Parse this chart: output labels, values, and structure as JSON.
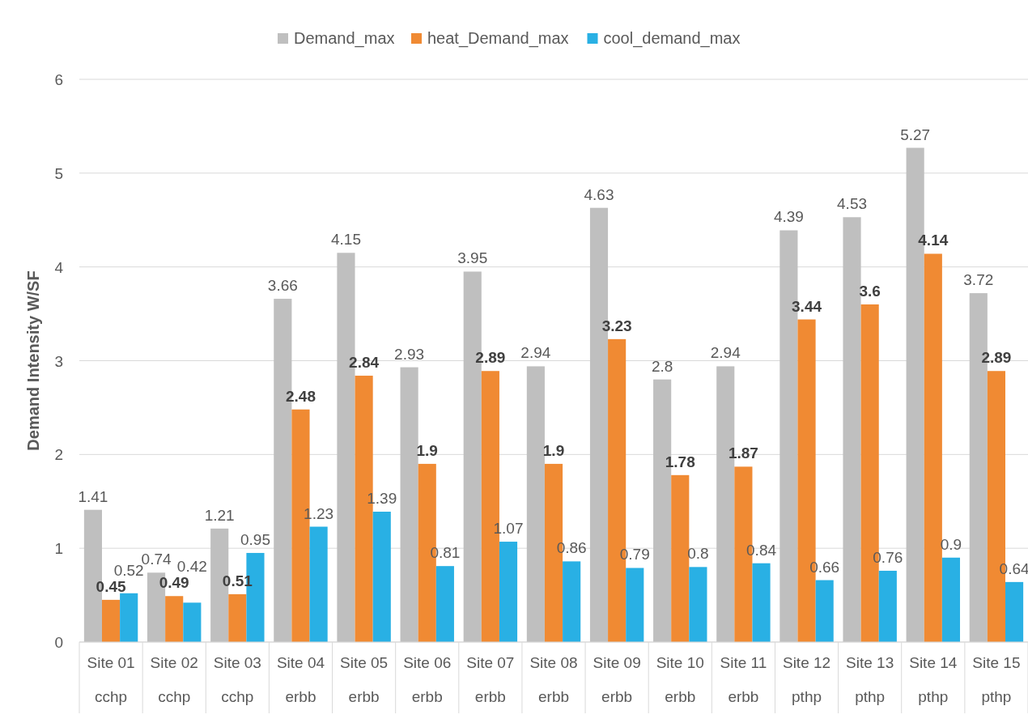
{
  "chart_data": {
    "type": "bar",
    "ylabel": "Demand Intensity W/SF",
    "categories": [
      "Site 01\ncchp",
      "Site 02\ncchp",
      "Site 03\ncchp",
      "Site 04\nerbb",
      "Site 05\nerbb",
      "Site 06\nerbb",
      "Site 07\nerbb",
      "Site 08\nerbb",
      "Site 09\nerbb",
      "Site 10\nerbb",
      "Site 11\nerbb",
      "Site 12\npthp",
      "Site 13\npthp",
      "Site 14\npthp",
      "Site 15\npthp"
    ],
    "series": [
      {
        "name": "Demand_max",
        "color": "#bfbfbf",
        "values": [
          1.41,
          0.74,
          1.21,
          3.66,
          4.15,
          2.93,
          3.95,
          2.94,
          4.63,
          2.8,
          2.94,
          4.39,
          4.53,
          5.27,
          3.72
        ]
      },
      {
        "name": "heat_Demand_max",
        "color": "#f08a33",
        "values": [
          0.45,
          0.49,
          0.51,
          2.48,
          2.84,
          1.9,
          2.89,
          1.9,
          3.23,
          1.78,
          1.87,
          3.44,
          3.6,
          4.14,
          2.89
        ]
      },
      {
        "name": "cool_demand_max",
        "color": "#29b0e4",
        "values": [
          0.52,
          0.42,
          0.95,
          1.23,
          1.39,
          0.81,
          1.07,
          0.86,
          0.79,
          0.8,
          0.84,
          0.66,
          0.76,
          0.9,
          0.64
        ]
      }
    ],
    "ylim": [
      0,
      6
    ],
    "yticks": [
      0,
      1,
      2,
      3,
      4,
      5,
      6
    ],
    "grid": "y",
    "legend": "top",
    "data_labels": true
  }
}
